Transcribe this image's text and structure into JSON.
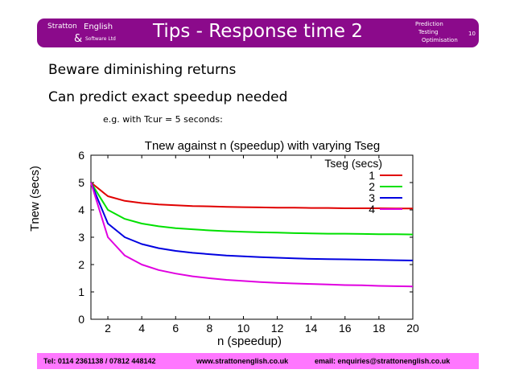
{
  "header": {
    "logo_line1": "Stratton",
    "logo_amp": "&",
    "logo_line2": "English",
    "logo_sub": "Software Ltd",
    "title": "Tips - Response time 2",
    "tags": [
      "Prediction",
      "Testing",
      "Optimisation"
    ],
    "page_number": "10"
  },
  "bullets": [
    "Beware diminishing returns",
    "Can predict exact speedup needed"
  ],
  "note": "e.g. with Tcur = 5 seconds:",
  "footer": {
    "tel": "Tel: 0114 2361138 / 07812 448142",
    "web": "www.strattonenglish.co.uk",
    "email": "email: enquiries@strattonenglish.co.uk"
  },
  "chart_data": {
    "type": "line",
    "title": "Tnew against n (speedup) with varying Tseg",
    "xlabel": "n (speedup)",
    "ylabel": "Tnew (secs)",
    "xlim": [
      1,
      20
    ],
    "ylim": [
      0,
      6
    ],
    "xticks": [
      2,
      4,
      6,
      8,
      10,
      12,
      14,
      16,
      18,
      20
    ],
    "yticks": [
      0,
      1,
      2,
      3,
      4,
      5,
      6
    ],
    "legend_title": "Tseg (secs)",
    "legend_position": "top-right",
    "x": [
      1,
      2,
      3,
      4,
      5,
      6,
      7,
      8,
      9,
      10,
      11,
      12,
      13,
      14,
      15,
      16,
      17,
      18,
      19,
      20
    ],
    "series": [
      {
        "name": "1",
        "color": "#e00000",
        "values": [
          5,
          4.5,
          4.33,
          4.25,
          4.2,
          4.17,
          4.14,
          4.13,
          4.11,
          4.1,
          4.09,
          4.08,
          4.08,
          4.07,
          4.07,
          4.06,
          4.06,
          4.06,
          4.05,
          4.05
        ]
      },
      {
        "name": "2",
        "color": "#00e000",
        "values": [
          5,
          4,
          3.67,
          3.5,
          3.4,
          3.33,
          3.29,
          3.25,
          3.22,
          3.2,
          3.18,
          3.17,
          3.15,
          3.14,
          3.13,
          3.13,
          3.12,
          3.11,
          3.11,
          3.1
        ]
      },
      {
        "name": "3",
        "color": "#0000e0",
        "values": [
          5,
          3.5,
          3,
          2.75,
          2.6,
          2.5,
          2.43,
          2.38,
          2.33,
          2.3,
          2.27,
          2.25,
          2.23,
          2.21,
          2.2,
          2.19,
          2.18,
          2.17,
          2.16,
          2.15
        ]
      },
      {
        "name": "4",
        "color": "#e000e0",
        "values": [
          5,
          3,
          2.33,
          2,
          1.8,
          1.67,
          1.57,
          1.5,
          1.44,
          1.4,
          1.36,
          1.33,
          1.31,
          1.29,
          1.27,
          1.25,
          1.24,
          1.22,
          1.21,
          1.2
        ]
      }
    ]
  }
}
